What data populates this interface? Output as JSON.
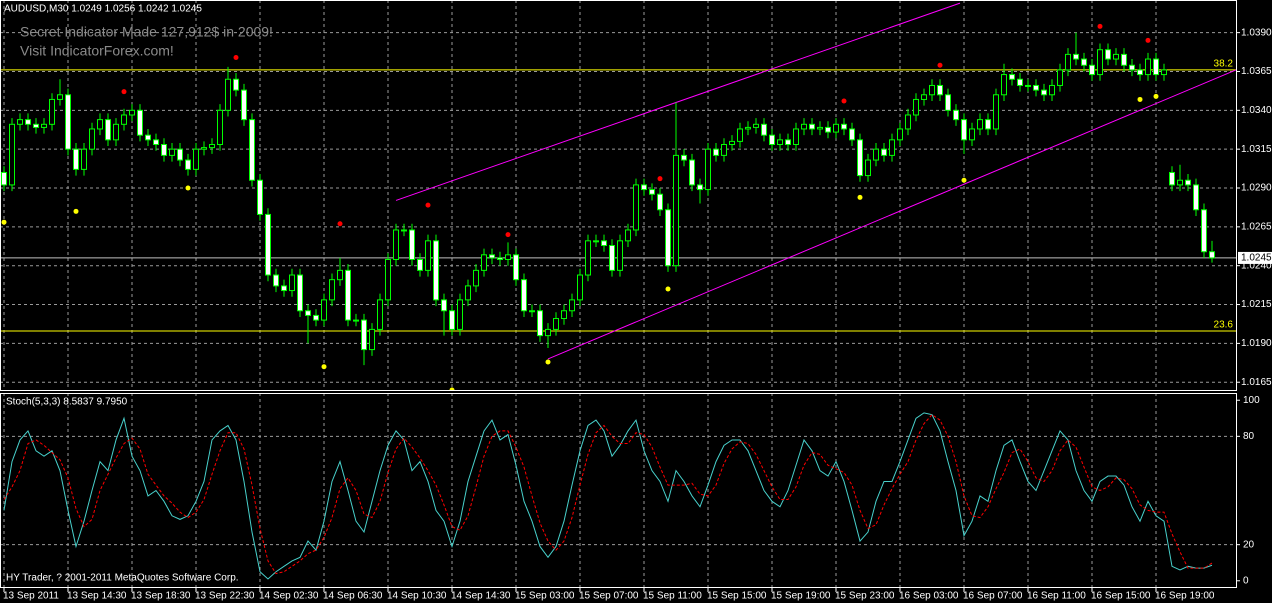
{
  "chart_data": [
    {
      "type": "candlestick",
      "header": "AUDUSD,M30  1.0249 1.0256 1.0242 1.0245",
      "promo": [
        "Secret Indicator Made 127,912$ in 2009!",
        "Visit IndicatorForex.com!"
      ],
      "categories": [
        "13 Sep 2011",
        null,
        null,
        null,
        null,
        null,
        null,
        null,
        "13 Sep 14:30",
        null,
        null,
        null,
        null,
        null,
        null,
        null,
        "13 Sep 18:30",
        null,
        null,
        null,
        null,
        null,
        null,
        null,
        "13 Sep 22:30",
        null,
        null,
        null,
        null,
        null,
        null,
        null,
        "14 Sep 02:30",
        null,
        null,
        null,
        null,
        null,
        null,
        null,
        "14 Sep 06:30",
        null,
        null,
        null,
        null,
        null,
        null,
        null,
        "14 Sep 10:30",
        null,
        null,
        null,
        null,
        null,
        null,
        null,
        "14 Sep 14:30",
        null,
        null,
        null,
        null,
        null,
        null,
        null,
        "15 Sep 03:00",
        null,
        null,
        null,
        null,
        null,
        null,
        null,
        "15 Sep 07:00",
        null,
        null,
        null,
        null,
        null,
        null,
        null,
        "15 Sep 11:00",
        null,
        null,
        null,
        null,
        null,
        null,
        null,
        "15 Sep 15:00",
        null,
        null,
        null,
        null,
        null,
        null,
        null,
        "15 Sep 19:00",
        null,
        null,
        null,
        null,
        null,
        null,
        null,
        "15 Sep 23:00",
        null,
        null,
        null,
        null,
        null,
        null,
        null,
        "16 Sep 03:00",
        null,
        null,
        null,
        null,
        null,
        null,
        null,
        "16 Sep 07:00",
        null,
        null,
        null,
        null,
        null,
        null,
        null,
        "16 Sep 11:00",
        null,
        null,
        null,
        null,
        null,
        null,
        null,
        "16 Sep 15:00",
        null,
        null,
        null,
        null,
        null,
        null,
        null,
        "16 Sep 19:00",
        null,
        null,
        null,
        null,
        null,
        null,
        null
      ],
      "open": [
        1.03,
        1.0292,
        1.0331,
        1.0334,
        1.0331,
        1.0329,
        1.0331,
        1.0347,
        1.035,
        1.0315,
        1.0302,
        1.0315,
        1.0328,
        1.0334,
        1.0321,
        1.0331,
        1.0337,
        1.034,
        1.0324,
        1.0321,
        1.0318,
        1.0311,
        1.0315,
        1.0308,
        1.0302,
        1.0315,
        1.0316,
        1.0318,
        1.034,
        1.036,
        1.0353,
        1.0334,
        1.0295,
        1.0273,
        1.0234,
        1.0227,
        1.0224,
        1.0234,
        1.0211,
        1.0208,
        1.0205,
        1.0218,
        1.0231,
        1.0237,
        1.0205,
        1.0205,
        1.0186,
        1.0199,
        1.0218,
        1.0244,
        1.0263,
        1.0263,
        1.0244,
        1.0237,
        1.0256,
        1.0218,
        1.0211,
        1.0199,
        1.0218,
        1.0227,
        1.0237,
        1.0247,
        1.0245,
        1.0244,
        1.0247,
        1.0231,
        1.0211,
        1.0211,
        1.0195,
        1.0199,
        1.0206,
        1.0211,
        1.0218,
        1.0234,
        1.0256,
        1.0256,
        1.0253,
        1.0237,
        1.0256,
        1.0263,
        1.0292,
        1.0289,
        1.0286,
        1.0276,
        1.024,
        1.0311,
        1.0308,
        1.0292,
        1.0289,
        1.0315,
        1.0311,
        1.0318,
        1.032,
        1.0328,
        1.0329,
        1.0331,
        1.0324,
        1.0318,
        1.0321,
        1.0318,
        1.0328,
        1.0331,
        1.0328,
        1.0329,
        1.0326,
        1.0331,
        1.0328,
        1.0321,
        1.0298,
        1.0308,
        1.0315,
        1.0311,
        1.0321,
        1.0328,
        1.0337,
        1.0347,
        1.035,
        1.0356,
        1.035,
        1.034,
        1.0334,
        1.0321,
        1.0328,
        1.0334,
        1.0328,
        1.035,
        1.0363,
        1.036,
        1.0356,
        1.0356,
        1.0353,
        1.035,
        1.0356,
        1.0366,
        1.0376,
        1.0373,
        1.0369,
        1.0363,
        1.0379,
        1.0373,
        1.0376,
        1.0369,
        1.0366,
        1.0363,
        1.0373,
        1.0363,
        1.03,
        1.0292,
        1.0295,
        1.0292,
        1.0276,
        1.0249
      ],
      "high": [
        1.0304,
        1.0335,
        1.0338,
        1.0338,
        1.0335,
        1.0335,
        1.0351,
        1.036,
        1.0354,
        1.0319,
        1.0319,
        1.0332,
        1.0338,
        1.0338,
        1.0335,
        1.0341,
        1.0344,
        1.0344,
        1.0328,
        1.0325,
        1.0322,
        1.0319,
        1.0319,
        1.0312,
        1.0319,
        1.032,
        1.0322,
        1.0344,
        1.0368,
        1.0364,
        1.0357,
        1.0338,
        1.0299,
        1.0277,
        1.0238,
        1.0231,
        1.0238,
        1.0238,
        1.0215,
        1.0212,
        1.0222,
        1.0235,
        1.0245,
        1.0241,
        1.0209,
        1.0209,
        1.0203,
        1.0222,
        1.0248,
        1.0267,
        1.0267,
        1.0267,
        1.0248,
        1.026,
        1.026,
        1.0222,
        1.0215,
        1.0222,
        1.0231,
        1.0241,
        1.0251,
        1.0251,
        1.0249,
        1.0255,
        1.0251,
        1.0235,
        1.0215,
        1.0215,
        1.0203,
        1.021,
        1.0215,
        1.0222,
        1.0238,
        1.026,
        1.026,
        1.026,
        1.0257,
        1.026,
        1.0267,
        1.0296,
        1.0296,
        1.0293,
        1.029,
        1.028,
        1.0345,
        1.0315,
        1.0312,
        1.0296,
        1.0319,
        1.0319,
        1.0322,
        1.0324,
        1.0332,
        1.0333,
        1.0335,
        1.0335,
        1.0328,
        1.0325,
        1.0325,
        1.0332,
        1.0335,
        1.0335,
        1.0333,
        1.0333,
        1.0335,
        1.0335,
        1.0332,
        1.0325,
        1.0312,
        1.0319,
        1.0319,
        1.0325,
        1.0332,
        1.0341,
        1.0351,
        1.0354,
        1.036,
        1.036,
        1.0354,
        1.0344,
        1.0338,
        1.0332,
        1.0338,
        1.0338,
        1.0354,
        1.037,
        1.0367,
        1.0364,
        1.036,
        1.036,
        1.0357,
        1.036,
        1.037,
        1.038,
        1.039,
        1.0377,
        1.0373,
        1.0383,
        1.0383,
        1.038,
        1.038,
        1.0373,
        1.037,
        1.0377,
        1.0377,
        1.037,
        1.0304,
        1.0305,
        1.0299,
        1.0296,
        1.028,
        1.0256
      ],
      "low": [
        1.0288,
        1.0288,
        1.0327,
        1.0327,
        1.0325,
        1.0325,
        1.0327,
        1.0343,
        1.0311,
        1.0298,
        1.0298,
        1.0311,
        1.0324,
        1.0317,
        1.0317,
        1.0327,
        1.0333,
        1.032,
        1.0317,
        1.0314,
        1.0307,
        1.0307,
        1.0304,
        1.0298,
        1.0298,
        1.0311,
        1.0312,
        1.0314,
        1.0336,
        1.0349,
        1.033,
        1.0291,
        1.0269,
        1.023,
        1.0223,
        1.022,
        1.022,
        1.0207,
        1.019,
        1.0201,
        1.0201,
        1.0214,
        1.0227,
        1.0201,
        1.0201,
        1.0176,
        1.0182,
        1.0195,
        1.0214,
        1.024,
        1.0259,
        1.024,
        1.0233,
        1.0233,
        1.0214,
        1.0195,
        1.0195,
        1.0195,
        1.0214,
        1.0223,
        1.0233,
        1.0241,
        1.024,
        1.024,
        1.0227,
        1.0207,
        1.0207,
        1.0191,
        1.0187,
        1.0195,
        1.0202,
        1.0207,
        1.0214,
        1.023,
        1.0252,
        1.0249,
        1.0233,
        1.0233,
        1.0252,
        1.0259,
        1.0285,
        1.0282,
        1.0272,
        1.0236,
        1.0236,
        1.0304,
        1.0288,
        1.028,
        1.0285,
        1.0307,
        1.0307,
        1.0314,
        1.0316,
        1.0324,
        1.0325,
        1.032,
        1.0314,
        1.0314,
        1.0314,
        1.0314,
        1.0324,
        1.0324,
        1.0324,
        1.0322,
        1.0322,
        1.0324,
        1.0317,
        1.0294,
        1.0294,
        1.0304,
        1.0307,
        1.0307,
        1.0317,
        1.0324,
        1.0333,
        1.0343,
        1.0346,
        1.0346,
        1.0336,
        1.033,
        1.0312,
        1.0317,
        1.0324,
        1.0324,
        1.0324,
        1.0346,
        1.0356,
        1.0352,
        1.0352,
        1.0349,
        1.0346,
        1.0346,
        1.0352,
        1.0362,
        1.0369,
        1.0365,
        1.0359,
        1.0359,
        1.0369,
        1.0369,
        1.0365,
        1.0362,
        1.0359,
        1.0359,
        1.0359,
        1.0359,
        1.0288,
        1.0288,
        1.0288,
        1.0272,
        1.0245,
        1.0242
      ],
      "close": [
        1.0292,
        1.0331,
        1.0334,
        1.0331,
        1.0329,
        1.0331,
        1.0347,
        1.035,
        1.0315,
        1.0302,
        1.0315,
        1.0328,
        1.0334,
        1.0321,
        1.0331,
        1.0337,
        1.034,
        1.0324,
        1.0321,
        1.0318,
        1.0311,
        1.0315,
        1.0308,
        1.0302,
        1.0315,
        1.0316,
        1.0318,
        1.034,
        1.036,
        1.0353,
        1.0334,
        1.0295,
        1.0273,
        1.0234,
        1.0227,
        1.0224,
        1.0234,
        1.0211,
        1.0208,
        1.0205,
        1.0218,
        1.0231,
        1.0237,
        1.0205,
        1.0205,
        1.0186,
        1.0199,
        1.0218,
        1.0244,
        1.0263,
        1.0263,
        1.0244,
        1.0237,
        1.0256,
        1.0218,
        1.0211,
        1.0199,
        1.0218,
        1.0227,
        1.0237,
        1.0247,
        1.0245,
        1.0244,
        1.0247,
        1.0231,
        1.0211,
        1.0211,
        1.0195,
        1.0199,
        1.0206,
        1.0211,
        1.0218,
        1.0234,
        1.0256,
        1.0256,
        1.0253,
        1.0237,
        1.0256,
        1.0263,
        1.0292,
        1.0289,
        1.0286,
        1.0276,
        1.024,
        1.0311,
        1.0308,
        1.0292,
        1.0289,
        1.0315,
        1.0311,
        1.0318,
        1.032,
        1.0328,
        1.0329,
        1.0331,
        1.0324,
        1.0318,
        1.0321,
        1.0318,
        1.0328,
        1.0331,
        1.0328,
        1.0329,
        1.0326,
        1.0331,
        1.0328,
        1.0321,
        1.0298,
        1.0308,
        1.0315,
        1.0311,
        1.0321,
        1.0328,
        1.0337,
        1.0347,
        1.035,
        1.0356,
        1.035,
        1.034,
        1.0334,
        1.0321,
        1.0328,
        1.0334,
        1.0328,
        1.035,
        1.0363,
        1.036,
        1.0356,
        1.0356,
        1.0353,
        1.035,
        1.0356,
        1.0366,
        1.0376,
        1.0373,
        1.0369,
        1.0363,
        1.0379,
        1.0373,
        1.0376,
        1.0369,
        1.0366,
        1.0363,
        1.0373,
        1.0363,
        1.0366,
        1.0292,
        1.0295,
        1.0292,
        1.0276,
        1.0249,
        1.0245
      ],
      "wick_color": "#00ff00",
      "bull_color": "#000000",
      "bear_color": "#ffffff",
      "ylim": [
        1.016,
        1.0411
      ],
      "yticks": [
        {
          "value": 1.039,
          "label": "1.0390"
        },
        1.0365,
        {
          "value": 1.034,
          "label": "1.0340"
        },
        1.0315,
        {
          "value": 1.029,
          "label": "1.0290"
        },
        1.0265,
        {
          "value": 1.024,
          "label": "1.0240"
        },
        1.0215,
        {
          "value": 1.019,
          "label": "1.0190"
        },
        1.0165
      ],
      "grid": true,
      "levels": [
        {
          "value": 1.0366,
          "label": "38.2"
        },
        {
          "value": 1.0198,
          "label": "23.6"
        }
      ],
      "level_color": "#ffff00",
      "bid": 1.0245,
      "channel": [
        {
          "x": [
            49,
            119.5
          ],
          "y": [
            1.0282,
            1.0409
          ]
        },
        {
          "x": [
            68,
            154
          ],
          "y": [
            1.018,
            1.0366
          ]
        }
      ],
      "channel_color": "#ff00ff",
      "upper_fractals": {
        "color": "#ff0000",
        "x": [
          15,
          29,
          42,
          53,
          63,
          82,
          105,
          117,
          137,
          143
        ],
        "values": [
          1.0352,
          1.0374,
          1.0267,
          1.0279,
          1.026,
          1.0296,
          1.0346,
          1.0369,
          1.0394,
          1.0385
        ]
      },
      "lower_fractals": {
        "color": "#ffff00",
        "x": [
          0,
          9,
          23,
          40,
          56,
          68,
          83,
          107,
          120,
          142,
          144
        ],
        "values": [
          1.0268,
          1.0275,
          1.029,
          1.0175,
          1.016,
          1.0178,
          1.0225,
          1.0284,
          1.0295,
          1.0347,
          1.0349
        ]
      }
    },
    {
      "type": "line",
      "title": "Stoch(5,3,3) 8.5837 9.7950",
      "series": [
        {
          "color": "#48d1cc",
          "dash": false,
          "values": [
            39,
            66,
            78,
            83,
            72,
            69,
            72,
            61,
            39,
            19,
            33,
            50,
            66,
            61,
            78,
            90,
            69,
            61,
            47,
            50,
            44,
            36,
            34,
            36,
            44,
            55,
            78,
            83,
            86,
            78,
            55,
            27,
            5,
            1,
            5,
            8,
            11,
            13,
            22,
            17,
            33,
            55,
            66,
            50,
            33,
            27,
            44,
            61,
            75,
            83,
            78,
            61,
            66,
            55,
            39,
            33,
            19,
            33,
            55,
            69,
            83,
            89,
            78,
            81,
            64,
            44,
            33,
            19,
            13,
            19,
            33,
            53,
            72,
            86,
            89,
            83,
            69,
            75,
            83,
            89,
            72,
            61,
            55,
            44,
            61,
            55,
            47,
            41,
            53,
            66,
            75,
            78,
            78,
            72,
            61,
            50,
            44,
            41,
            50,
            64,
            78,
            72,
            61,
            58,
            66,
            55,
            39,
            22,
            27,
            44,
            55,
            55,
            66,
            78,
            90,
            93,
            92,
            83,
            66,
            50,
            25,
            33,
            47,
            44,
            61,
            75,
            78,
            66,
            55,
            50,
            61,
            72,
            83,
            78,
            61,
            50,
            44,
            55,
            58,
            58,
            53,
            41,
            33,
            44,
            36,
            33,
            8,
            6,
            8,
            7,
            7,
            8.5837
          ]
        },
        {
          "color": "#ff0000",
          "dash": true,
          "values": [
            45,
            52,
            61,
            76,
            78,
            75,
            71,
            67,
            57,
            40,
            30,
            34,
            50,
            59,
            68,
            76,
            79,
            73,
            59,
            53,
            47,
            43,
            38,
            35,
            38,
            45,
            59,
            72,
            82,
            82,
            73,
            53,
            29,
            11,
            4,
            5,
            8,
            11,
            15,
            17,
            24,
            35,
            51,
            57,
            50,
            37,
            35,
            44,
            60,
            73,
            79,
            74,
            68,
            61,
            53,
            42,
            30,
            28,
            36,
            52,
            69,
            80,
            83,
            83,
            74,
            63,
            47,
            32,
            22,
            17,
            22,
            35,
            53,
            70,
            82,
            86,
            80,
            76,
            76,
            82,
            81,
            74,
            63,
            53,
            53,
            53,
            54,
            48,
            47,
            53,
            65,
            73,
            77,
            76,
            70,
            61,
            52,
            45,
            45,
            52,
            64,
            71,
            70,
            64,
            62,
            60,
            53,
            39,
            29,
            31,
            42,
            51,
            59,
            66,
            78,
            87,
            92,
            89,
            80,
            66,
            47,
            36,
            35,
            41,
            51,
            60,
            71,
            73,
            66,
            57,
            55,
            61,
            72,
            78,
            74,
            63,
            52,
            50,
            52,
            57,
            56,
            51,
            42,
            39,
            38,
            38,
            26,
            16,
            7,
            7,
            7,
            9.795
          ]
        }
      ],
      "ylim": [
        -4,
        104
      ],
      "yticks": [
        0,
        20,
        80,
        100
      ],
      "grid": true
    }
  ],
  "footer": "HY Trader, ? 2001-2011 MetaQuotes Software Corp."
}
